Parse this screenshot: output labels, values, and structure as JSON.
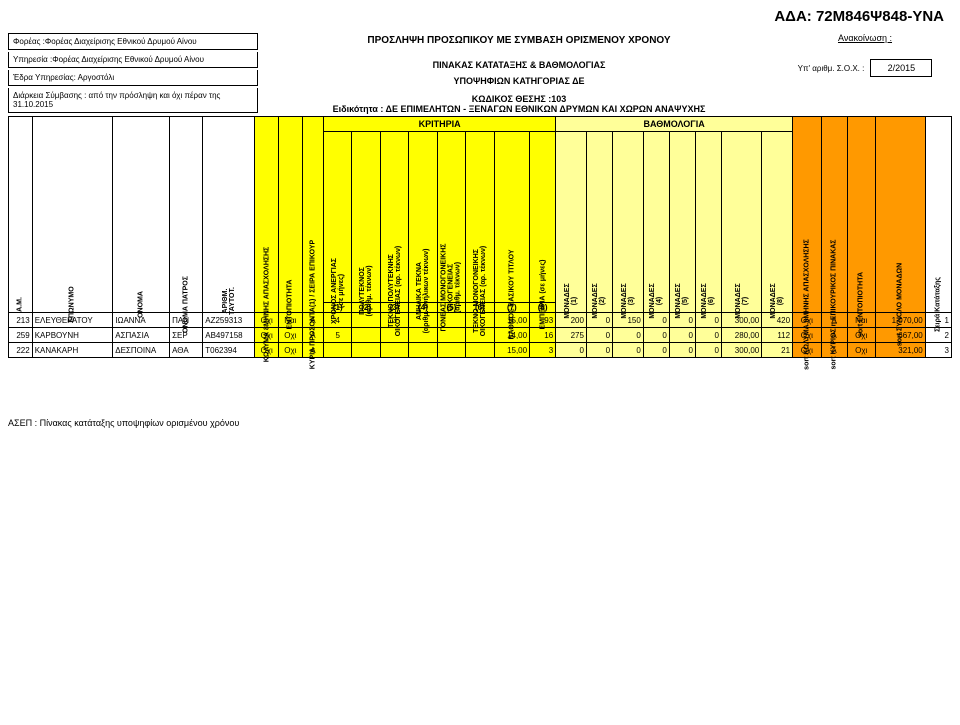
{
  "ada": "ΑΔΑ: 72Μ846Ψ848-ΥΝΑ",
  "top": {
    "foreas": "Φορέας :Φορέας Διαχείρισης Εθνικού Δρυμού Αίνου",
    "ypiresia": "Υπηρεσία :Φορέας Διαχείρισης Εθνικού Δρυμού Αίνου",
    "edra": "Έδρα Υπηρεσίας: Αργοστόλι",
    "diarkeia": "Διάρκεια Σύμβασης : από την πρόσληψη και όχι πέραν της 31.10.2015",
    "main_title": "ΠΡΟΣΛΗΨΗ ΠΡΟΣΩΠΙΚΟΥ ΜΕ ΣΥΜΒΑΣΗ ΟΡΙΣΜΕΝΟΥ ΧΡΟΝΟΥ",
    "sub1": "ΠΙΝΑΚΑΣ ΚΑΤΑΤΑΞΗΣ & ΒΑΘΜΟΛΟΓΙΑΣ",
    "sub2": "ΥΠΟΨΗΦΙΩΝ ΚΑΤΗΓΟΡΙΑΣ ΔΕ",
    "code": "ΚΩΔΙΚΟΣ ΘΕΣΗΣ :103",
    "spec": "Ειδικότητα :  ΔΕ ΕΠΙΜΕΛΗΤΩΝ - ΞΕΝΑΓΩΝ ΕΘΝΙΚΩΝ ΔΡΥΜΩΝ ΚΑΙ ΧΩΡΩΝ ΑΝΑΨΥΧΗΣ",
    "ann": "Ανακοίνωση :",
    "yp_lbl": "Υπ' αριθμ. Σ.Ο.Χ. :",
    "yp_val": "2/2015"
  },
  "bands": {
    "kritiria": "ΚΡΙΤΗΡΙΑ",
    "vath": "ΒΑΘΜΟΛΟΓΙΑ"
  },
  "headers": {
    "am": "Α.Μ.",
    "epon": "ΕΠΩΝΥΜΟ",
    "onoma": "ΟΝΟΜΑ",
    "patr": "ΟΝΟΜΑ ΠΑΤΡΟΣ",
    "adt": "ΑΡΙΘΜ.\nΤΑΥΤΟΤ.",
    "kol": "ΚΩΛΥΜΑ 8ΜΗΝΗΣ ΑΠΑΣΧΟΛΗΣΗΣ",
    "ent": "ΕΝΤΟΠΙΟΤΗΤΑ",
    "kyria": "ΚΥΡΙΑ ΠΡΟΣΟΝΤΑ(1) / ΣΕΙΡΑ ΕΠΙΚΟΥΡ",
    "k1": "ΧΡΟΝΟΣ ΑΝΕΡΓΙΑΣ\n(σε μήνες)",
    "k2": "ΠΟΛΥΤΕΚΝΟΣ\n(αριθμ. τέκνων)",
    "k3": "ΤΕΚΝΟ ΠΟΛΥΤΕΚΝΗΣ\nΟΙΚΟΓΕΝΕΙΑΣ (αρ. τέκνων)",
    "k4": "ΑΝΗΛΙΚΑ ΤΕΚΝΑ\n(αριθμ. ανήλικων τέκνων)",
    "k5": "ΓΟΝΕΑΣ ΜΟΝΟΓΟΝΕΙΚΗΣ\nΟΙΚΟΓΕΝΕΙΑΣ\n(αριθμ. τέκνων)",
    "k6": "ΤΕΚΝΟ ΜΟΝΟΓΟΝΕΙΚΗΣ\nΟΙΚΟΓΕΝΕΙΑΣ (αρ. τέκνων)",
    "k7": "ΒΑΘΜΟΣ ΒΑΣΙΚΟΥ ΤΙΤΛΟΥ",
    "k8": "ΕΜΠΕΙΡΙΑ (σε μήνες)",
    "m1": "ΜΟΝΑΔΕΣ\n(1)",
    "m2": "ΜΟΝΑΔΕΣ\n(2)",
    "m3": "ΜΟΝΑΔΕΣ\n(3)",
    "m4": "ΜΟΝΑΔΕΣ\n(4)",
    "m5": "ΜΟΝΑΔΕΣ\n(5)",
    "m6": "ΜΟΝΑΔΕΣ\n(6)",
    "m7": "ΜΟΝΑΔΕΣ\n(7)",
    "m8": "ΜΟΝΑΔΕΣ\n(8)",
    "s1": "sort ΚΩΛΥΜΑ 8ΜΗΝΗΣ ΑΠΑΣΧΟΛΗΣΗΣ",
    "s2": "sort ΚΥΡΙΟΣ η ΕΠΙΚΟΥΡΙΚΟΣ ΠΙΝΑΚΑΣ",
    "s3": "sort ΕΝΤΟΠΙΟΤΗΤΑ",
    "s4": "sort ΣΥΝΟΛΟ ΜΟΝΑΔΩΝ",
    "seira": "Σειρά Κατάταξης"
  },
  "nums": [
    "(1)",
    "(2)",
    "(3)",
    "(4)",
    "(5)",
    "(6)",
    "(7)",
    "(8)"
  ],
  "rows": [
    {
      "am": "213",
      "ep": "ΕΛΕΥΘΕΡΑΤΟΥ",
      "on": "ΙΩΑΝΝΑ",
      "pa": "ΠΑΝ",
      "adt": "ΑΖ259313",
      "kol": "Οχι",
      "ent": "Ναι",
      "ky": "Α",
      "k1": "4",
      "k2": "",
      "k3": "3",
      "k4": "",
      "k5": "",
      "k6": "",
      "k7": "15,00",
      "k8": "93",
      "m1": "200",
      "m2": "0",
      "m3": "150",
      "m4": "0",
      "m5": "0",
      "m6": "0",
      "m7": "300,00",
      "m8": "420",
      "s1": "Οχι",
      "s2": "Α",
      "s3": "Ναι",
      "s4": "1.070,00",
      "sr": "1"
    },
    {
      "am": "259",
      "ep": "ΚΑΡΒΟΥΝΗ",
      "on": "ΑΣΠΑΣΙΑ",
      "pa": "ΣΕΡ",
      "adt": "ΑΒ497158",
      "kol": "Οχι",
      "ent": "Οχι",
      "ky": "Α",
      "k1": "5",
      "k2": "",
      "k3": "",
      "k4": "",
      "k5": "",
      "k6": "",
      "k7": "14,00",
      "k8": "16",
      "m1": "275",
      "m2": "0",
      "m3": "0",
      "m4": "0",
      "m5": "0",
      "m6": "0",
      "m7": "280,00",
      "m8": "112",
      "s1": "Οχι",
      "s2": "Α",
      "s3": "Οχι",
      "s4": "667,00",
      "sr": "2"
    },
    {
      "am": "222",
      "ep": "ΚΑΝΑΚΑΡΗ",
      "on": "ΔΕΣΠΟΙΝΑ",
      "pa": "ΑΘΑ",
      "adt": "Τ062394",
      "kol": "Οχι",
      "ent": "Οχι",
      "ky": "Α",
      "k1": "",
      "k2": "",
      "k3": "",
      "k4": "",
      "k5": "",
      "k6": "",
      "k7": "15,00",
      "k8": "3",
      "m1": "0",
      "m2": "0",
      "m3": "0",
      "m4": "0",
      "m5": "0",
      "m6": "0",
      "m7": "300,00",
      "m8": "21",
      "s1": "Οχι",
      "s2": "Α",
      "s3": "Οχι",
      "s4": "321,00",
      "sr": "3"
    }
  ],
  "footer": "ΑΣΕΠ : Πίνακας κατάταξης  υποψηφίων ορισμένου χρόνου"
}
